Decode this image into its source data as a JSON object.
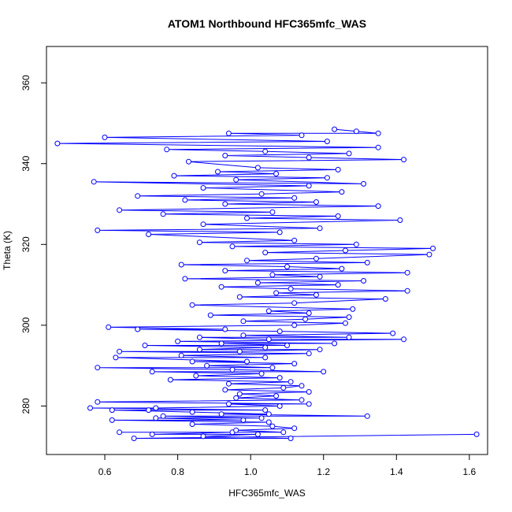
{
  "chart_data": {
    "type": "line",
    "title": "ATOM1 Northbound HFC365mfc_WAS",
    "xlabel": "HFC365mfc_WAS",
    "ylabel": "Theta (K)",
    "xlim": [
      0.44,
      1.65
    ],
    "ylim": [
      268,
      369
    ],
    "x_ticks": [
      0.6,
      0.8,
      1.0,
      1.2,
      1.4,
      1.6
    ],
    "x_tick_labels": [
      "0.6",
      "0.8",
      "1.0",
      "1.2",
      "1.4",
      "1.6"
    ],
    "y_ticks": [
      280,
      300,
      320,
      340,
      360
    ],
    "y_tick_labels": [
      "280",
      "300",
      "320",
      "340",
      "360"
    ],
    "grid": false,
    "legend": "none",
    "colors": {
      "series": "#0000ff",
      "axes": "#000000",
      "background": "#ffffff"
    },
    "marker": "open-circle",
    "series": [
      {
        "values": [
          [
            1.62,
            273.0
          ],
          [
            0.68,
            272.0
          ],
          [
            1.11,
            272.0
          ],
          [
            0.87,
            272.5
          ],
          [
            1.02,
            273.0
          ],
          [
            0.73,
            273.0
          ],
          [
            0.95,
            273.5
          ],
          [
            0.64,
            273.5
          ],
          [
            1.09,
            273.5
          ],
          [
            0.96,
            274.0
          ],
          [
            1.12,
            274.5
          ],
          [
            1.06,
            275.0
          ],
          [
            0.84,
            275.5
          ],
          [
            1.05,
            276.0
          ],
          [
            0.62,
            276.5
          ],
          [
            0.98,
            276.5
          ],
          [
            0.74,
            277.0
          ],
          [
            1.03,
            277.0
          ],
          [
            0.76,
            277.5
          ],
          [
            1.32,
            277.5
          ],
          [
            0.92,
            278.0
          ],
          [
            1.05,
            278.0
          ],
          [
            0.84,
            278.5
          ],
          [
            0.62,
            279.0
          ],
          [
            0.72,
            279.0
          ],
          [
            1.04,
            279.0
          ],
          [
            0.56,
            279.5
          ],
          [
            0.74,
            279.5
          ],
          [
            1.08,
            280.0
          ],
          [
            0.94,
            280.5
          ],
          [
            1.16,
            280.5
          ],
          [
            0.58,
            281.0
          ],
          [
            1.14,
            281.5
          ],
          [
            0.96,
            282.0
          ],
          [
            1.07,
            282.5
          ],
          [
            0.97,
            283.0
          ],
          [
            1.16,
            283.5
          ],
          [
            0.93,
            284.0
          ],
          [
            1.09,
            284.5
          ],
          [
            1.14,
            285.0
          ],
          [
            0.94,
            285.5
          ],
          [
            1.11,
            286.0
          ],
          [
            0.78,
            286.5
          ],
          [
            1.08,
            287.0
          ],
          [
            0.85,
            287.5
          ],
          [
            1.03,
            288.0
          ],
          [
            0.73,
            288.5
          ],
          [
            1.2,
            288.5
          ],
          [
            0.95,
            289.0
          ],
          [
            0.58,
            289.5
          ],
          [
            1.06,
            289.5
          ],
          [
            0.88,
            290.0
          ],
          [
            1.12,
            290.5
          ],
          [
            0.84,
            291.0
          ],
          [
            0.99,
            291.0
          ],
          [
            0.63,
            292.0
          ],
          [
            1.04,
            292.0
          ],
          [
            0.81,
            292.5
          ],
          [
            1.16,
            293.0
          ],
          [
            0.64,
            293.5
          ],
          [
            0.97,
            293.5
          ],
          [
            1.19,
            294.0
          ],
          [
            0.86,
            294.0
          ],
          [
            1.04,
            294.5
          ],
          [
            0.71,
            295.0
          ],
          [
            1.1,
            295.0
          ],
          [
            0.92,
            295.5
          ],
          [
            1.23,
            295.5
          ],
          [
            0.8,
            296.0
          ],
          [
            1.42,
            296.5
          ],
          [
            1.05,
            296.5
          ],
          [
            0.86,
            297.0
          ],
          [
            1.27,
            297.0
          ],
          [
            0.98,
            297.5
          ],
          [
            1.39,
            298.0
          ],
          [
            1.08,
            298.5
          ],
          [
            0.69,
            299.0
          ],
          [
            0.93,
            299.0
          ],
          [
            0.61,
            299.5
          ],
          [
            1.12,
            300.0
          ],
          [
            1.26,
            300.5
          ],
          [
            0.98,
            301.0
          ],
          [
            1.15,
            301.5
          ],
          [
            1.27,
            302.0
          ],
          [
            0.89,
            302.5
          ],
          [
            1.16,
            303.0
          ],
          [
            1.05,
            303.5
          ],
          [
            1.28,
            304.0
          ],
          [
            0.84,
            305.0
          ],
          [
            1.12,
            305.5
          ],
          [
            1.37,
            306.5
          ],
          [
            0.97,
            307.0
          ],
          [
            1.18,
            307.5
          ],
          [
            1.07,
            308.0
          ],
          [
            1.43,
            308.5
          ],
          [
            1.11,
            309.0
          ],
          [
            0.92,
            309.5
          ],
          [
            1.24,
            310.0
          ],
          [
            1.02,
            310.5
          ],
          [
            1.31,
            311.0
          ],
          [
            0.82,
            311.5
          ],
          [
            1.19,
            312.0
          ],
          [
            1.06,
            312.5
          ],
          [
            1.43,
            313.0
          ],
          [
            0.93,
            313.5
          ],
          [
            1.25,
            314.0
          ],
          [
            1.1,
            314.5
          ],
          [
            0.81,
            315.0
          ],
          [
            1.32,
            315.5
          ],
          [
            0.99,
            316.0
          ],
          [
            1.18,
            316.5
          ],
          [
            1.49,
            317.5
          ],
          [
            1.04,
            318.0
          ],
          [
            1.26,
            318.5
          ],
          [
            1.5,
            319.0
          ],
          [
            0.95,
            319.5
          ],
          [
            1.29,
            320.0
          ],
          [
            0.86,
            320.5
          ],
          [
            1.12,
            321.0
          ],
          [
            0.72,
            322.5
          ],
          [
            1.08,
            323.0
          ],
          [
            0.58,
            323.5
          ],
          [
            1.19,
            324.0
          ],
          [
            0.87,
            325.0
          ],
          [
            1.41,
            326.0
          ],
          [
            0.99,
            326.5
          ],
          [
            1.24,
            327.0
          ],
          [
            0.76,
            327.5
          ],
          [
            1.06,
            328.0
          ],
          [
            0.64,
            328.5
          ],
          [
            1.35,
            329.5
          ],
          [
            0.93,
            330.0
          ],
          [
            1.18,
            330.5
          ],
          [
            0.82,
            331.0
          ],
          [
            1.12,
            331.5
          ],
          [
            0.69,
            332.0
          ],
          [
            1.03,
            332.5
          ],
          [
            1.25,
            333.0
          ],
          [
            0.87,
            334.0
          ],
          [
            1.16,
            334.5
          ],
          [
            0.57,
            335.5
          ],
          [
            1.31,
            335.0
          ],
          [
            0.96,
            336.0
          ],
          [
            1.21,
            336.5
          ],
          [
            0.79,
            337.0
          ],
          [
            1.07,
            337.5
          ],
          [
            0.91,
            338.0
          ],
          [
            1.24,
            338.5
          ],
          [
            1.02,
            339.0
          ],
          [
            0.83,
            340.5
          ],
          [
            1.42,
            341.0
          ],
          [
            1.16,
            341.5
          ],
          [
            0.93,
            342.0
          ],
          [
            1.27,
            342.5
          ],
          [
            1.04,
            343.0
          ],
          [
            0.77,
            343.5
          ],
          [
            1.35,
            344.0
          ],
          [
            0.47,
            345.0
          ],
          [
            1.21,
            345.5
          ],
          [
            0.6,
            346.5
          ],
          [
            1.14,
            347.0
          ],
          [
            0.94,
            347.5
          ],
          [
            1.35,
            347.5
          ],
          [
            1.23,
            348.5
          ],
          [
            1.29,
            348.0
          ]
        ]
      }
    ]
  }
}
